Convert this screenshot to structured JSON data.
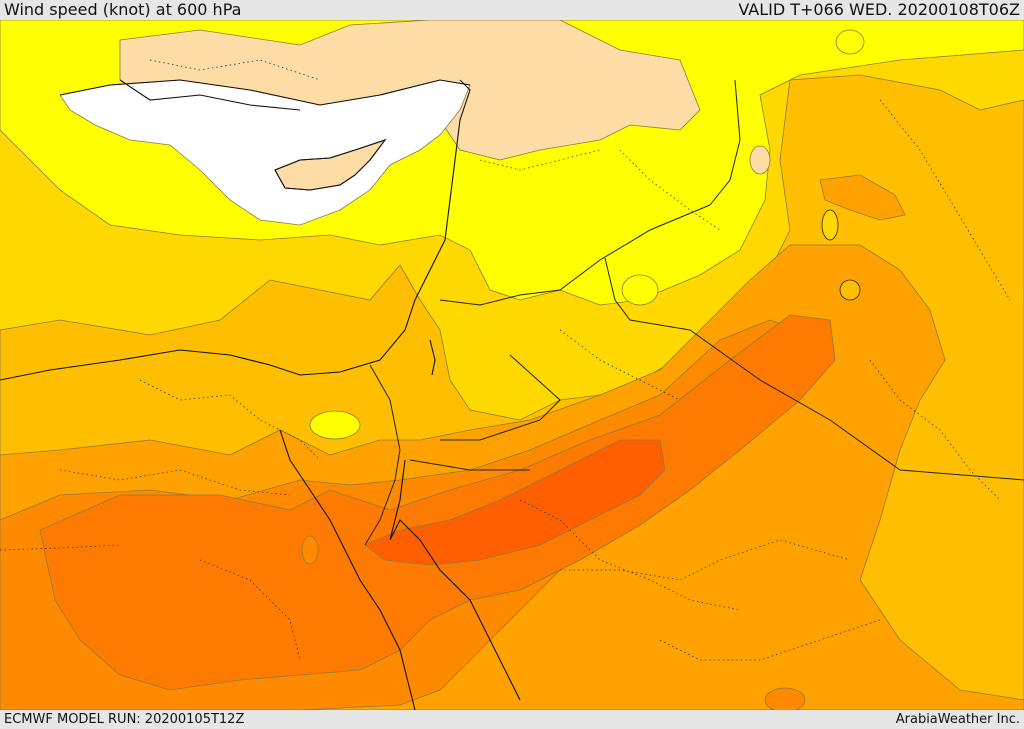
{
  "header": {
    "title": "Wind speed (knot) at 600 hPa",
    "valid": "VALID T+066 WED. 20200108T06Z"
  },
  "footer": {
    "model_run": "ECMWF MODEL RUN: 20200105T12Z",
    "credit": "ArabiaWeather Inc."
  },
  "colors": {
    "white_sea": "#ffffff",
    "peach": "#fddca6",
    "yellow": "#ffff00",
    "gold": "#ffd900",
    "amber": "#ffbf00",
    "orange_light": "#ffa200",
    "orange": "#ff8a00",
    "orange_deep": "#ff7700",
    "red_orange": "#ff5f00"
  }
}
